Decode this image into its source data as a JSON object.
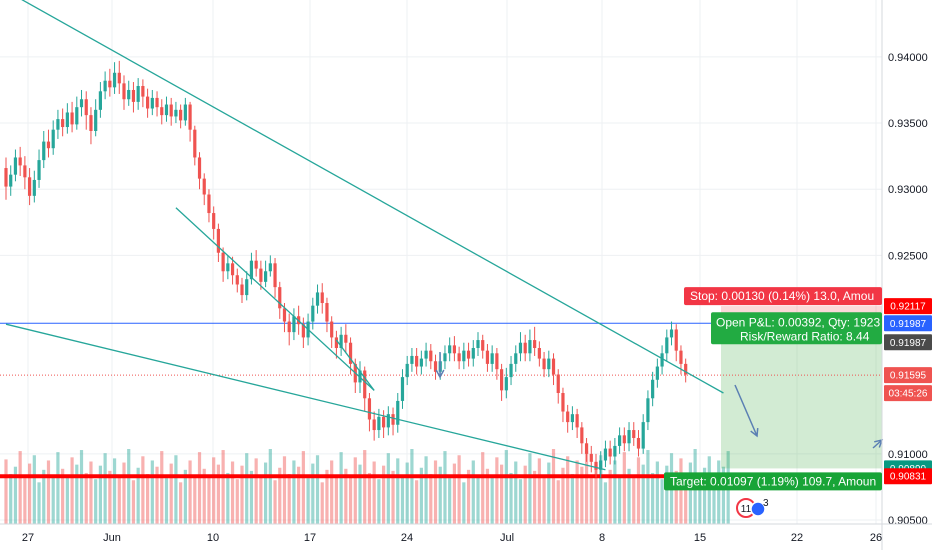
{
  "chart_data": {
    "type": "candlestick",
    "title": "",
    "y_axis": {
      "range": [
        0.9047,
        0.9443
      ],
      "ticks": [
        "0.94000",
        "0.93500",
        "0.93000",
        "0.92500",
        "0.91000",
        "0.90500"
      ]
    },
    "x_axis": {
      "ticks": [
        "27",
        "Jun",
        "10",
        "17",
        "24",
        "Jul",
        "8",
        "15",
        "22",
        "26"
      ]
    },
    "grid": true,
    "candles": [
      [
        0.9316,
        0.9302,
        0.9324,
        0.9292
      ],
      [
        0.9302,
        0.9311,
        0.9318,
        0.9295
      ],
      [
        0.9311,
        0.9324,
        0.933,
        0.9306
      ],
      [
        0.9324,
        0.9318,
        0.9332,
        0.931
      ],
      [
        0.9318,
        0.9309,
        0.9325,
        0.93
      ],
      [
        0.9309,
        0.9295,
        0.9316,
        0.9288
      ],
      [
        0.9295,
        0.9307,
        0.9314,
        0.929
      ],
      [
        0.9307,
        0.9322,
        0.933,
        0.9301
      ],
      [
        0.9322,
        0.9336,
        0.9344,
        0.9316
      ],
      [
        0.9336,
        0.9331,
        0.9345,
        0.9324
      ],
      [
        0.9331,
        0.9345,
        0.9352,
        0.9326
      ],
      [
        0.9345,
        0.9353,
        0.936,
        0.9338
      ],
      [
        0.9353,
        0.9347,
        0.9361,
        0.934
      ],
      [
        0.9347,
        0.9358,
        0.9365,
        0.9342
      ],
      [
        0.9358,
        0.9349,
        0.9366,
        0.9343
      ],
      [
        0.9349,
        0.9362,
        0.937,
        0.9345
      ],
      [
        0.9362,
        0.9368,
        0.9375,
        0.9355
      ],
      [
        0.9368,
        0.9356,
        0.9374,
        0.9345
      ],
      [
        0.9356,
        0.9344,
        0.9362,
        0.9334
      ],
      [
        0.9344,
        0.936,
        0.9368,
        0.934
      ],
      [
        0.936,
        0.9374,
        0.9381,
        0.9354
      ],
      [
        0.9374,
        0.9382,
        0.9389,
        0.9368
      ],
      [
        0.9382,
        0.9377,
        0.9391,
        0.937
      ],
      [
        0.9377,
        0.9388,
        0.9396,
        0.9372
      ],
      [
        0.9388,
        0.938,
        0.9397,
        0.9372
      ],
      [
        0.938,
        0.9368,
        0.9386,
        0.936
      ],
      [
        0.9368,
        0.9375,
        0.9382,
        0.9363
      ],
      [
        0.9375,
        0.9366,
        0.9381,
        0.9358
      ],
      [
        0.9366,
        0.9378,
        0.9384,
        0.936
      ],
      [
        0.9378,
        0.937,
        0.9383,
        0.9362
      ],
      [
        0.937,
        0.9361,
        0.9376,
        0.9354
      ],
      [
        0.9361,
        0.9369,
        0.9375,
        0.9356
      ],
      [
        0.9369,
        0.9362,
        0.9374,
        0.9355
      ],
      [
        0.9362,
        0.9356,
        0.9368,
        0.9349
      ],
      [
        0.9356,
        0.9364,
        0.937,
        0.9351
      ],
      [
        0.9364,
        0.9355,
        0.9369,
        0.9348
      ],
      [
        0.9355,
        0.936,
        0.9366,
        0.935
      ],
      [
        0.936,
        0.9352,
        0.9364,
        0.9346
      ],
      [
        0.9352,
        0.9364,
        0.9369,
        0.9348
      ],
      [
        0.9364,
        0.9345,
        0.9366,
        0.9336
      ],
      [
        0.9345,
        0.9324,
        0.9348,
        0.9318
      ],
      [
        0.9324,
        0.9308,
        0.9328,
        0.93
      ],
      [
        0.9308,
        0.9296,
        0.9312,
        0.9288
      ],
      [
        0.9296,
        0.9282,
        0.93,
        0.9275
      ],
      [
        0.9282,
        0.927,
        0.9287,
        0.9262
      ],
      [
        0.927,
        0.9252,
        0.9274,
        0.9245
      ],
      [
        0.9252,
        0.9238,
        0.9256,
        0.923
      ],
      [
        0.9238,
        0.9244,
        0.925,
        0.9232
      ],
      [
        0.9244,
        0.9235,
        0.9249,
        0.9228
      ],
      [
        0.9235,
        0.9228,
        0.924,
        0.9222
      ],
      [
        0.9228,
        0.922,
        0.9233,
        0.9214
      ],
      [
        0.922,
        0.9232,
        0.9238,
        0.9216
      ],
      [
        0.9232,
        0.9246,
        0.9252,
        0.9228
      ],
      [
        0.9246,
        0.924,
        0.9254,
        0.9234
      ],
      [
        0.924,
        0.923,
        0.9246,
        0.9224
      ],
      [
        0.923,
        0.9238,
        0.9246,
        0.9226
      ],
      [
        0.9238,
        0.9244,
        0.925,
        0.9234
      ],
      [
        0.9244,
        0.9226,
        0.9248,
        0.9218
      ],
      [
        0.9226,
        0.921,
        0.923,
        0.9202
      ],
      [
        0.921,
        0.92,
        0.9214,
        0.9192
      ],
      [
        0.92,
        0.9192,
        0.9206,
        0.9182
      ],
      [
        0.9192,
        0.9204,
        0.921,
        0.9186
      ],
      [
        0.9204,
        0.9198,
        0.9212,
        0.919
      ],
      [
        0.9198,
        0.9188,
        0.9203,
        0.918
      ],
      [
        0.9188,
        0.92,
        0.9206,
        0.9182
      ],
      [
        0.92,
        0.9212,
        0.9218,
        0.9194
      ],
      [
        0.9212,
        0.9222,
        0.9228,
        0.9206
      ],
      [
        0.9222,
        0.9214,
        0.9229,
        0.9206
      ],
      [
        0.9214,
        0.92,
        0.9218,
        0.9192
      ],
      [
        0.92,
        0.9188,
        0.9204,
        0.918
      ],
      [
        0.9188,
        0.918,
        0.9193,
        0.9172
      ],
      [
        0.918,
        0.919,
        0.9196,
        0.9174
      ],
      [
        0.919,
        0.9184,
        0.9198,
        0.9176
      ],
      [
        0.9184,
        0.9168,
        0.9188,
        0.916
      ],
      [
        0.9168,
        0.9154,
        0.9172,
        0.9146
      ],
      [
        0.9154,
        0.9163,
        0.917,
        0.9146
      ],
      [
        0.9163,
        0.9142,
        0.9166,
        0.9132
      ],
      [
        0.9142,
        0.9126,
        0.9146,
        0.9117
      ],
      [
        0.9126,
        0.9118,
        0.9132,
        0.911
      ],
      [
        0.9118,
        0.9128,
        0.9134,
        0.9112
      ],
      [
        0.9128,
        0.912,
        0.9133,
        0.9112
      ],
      [
        0.912,
        0.913,
        0.9136,
        0.9114
      ],
      [
        0.913,
        0.9122,
        0.9135,
        0.9114
      ],
      [
        0.9122,
        0.914,
        0.9146,
        0.9116
      ],
      [
        0.914,
        0.9158,
        0.9164,
        0.9134
      ],
      [
        0.9158,
        0.9168,
        0.9174,
        0.9152
      ],
      [
        0.9168,
        0.9174,
        0.918,
        0.9162
      ],
      [
        0.9174,
        0.9166,
        0.918,
        0.916
      ],
      [
        0.9166,
        0.9172,
        0.9178,
        0.916
      ],
      [
        0.9172,
        0.9178,
        0.9184,
        0.9166
      ],
      [
        0.9178,
        0.917,
        0.9183,
        0.9164
      ],
      [
        0.917,
        0.9162,
        0.9175,
        0.9156
      ],
      [
        0.9162,
        0.917,
        0.9176,
        0.9156
      ],
      [
        0.917,
        0.9176,
        0.9182,
        0.9164
      ],
      [
        0.9176,
        0.9182,
        0.9188,
        0.917
      ],
      [
        0.9182,
        0.9176,
        0.9189,
        0.917
      ],
      [
        0.9176,
        0.917,
        0.9181,
        0.9164
      ],
      [
        0.917,
        0.9178,
        0.9184,
        0.9164
      ],
      [
        0.9178,
        0.9172,
        0.9184,
        0.9166
      ],
      [
        0.9172,
        0.918,
        0.9186,
        0.9166
      ],
      [
        0.918,
        0.9186,
        0.9192,
        0.9174
      ],
      [
        0.9186,
        0.9178,
        0.919,
        0.9172
      ],
      [
        0.9178,
        0.9168,
        0.9183,
        0.9162
      ],
      [
        0.9168,
        0.9176,
        0.9182,
        0.9162
      ],
      [
        0.9176,
        0.9164,
        0.918,
        0.9156
      ],
      [
        0.9164,
        0.9148,
        0.9168,
        0.914
      ],
      [
        0.9148,
        0.9158,
        0.9165,
        0.9142
      ],
      [
        0.9158,
        0.9168,
        0.9174,
        0.9152
      ],
      [
        0.9168,
        0.9176,
        0.9182,
        0.9162
      ],
      [
        0.9176,
        0.9184,
        0.9192,
        0.917
      ],
      [
        0.9184,
        0.9176,
        0.919,
        0.917
      ],
      [
        0.9176,
        0.9186,
        0.9194,
        0.917
      ],
      [
        0.9186,
        0.918,
        0.9196,
        0.9174
      ],
      [
        0.918,
        0.9172,
        0.9185,
        0.9166
      ],
      [
        0.9172,
        0.9164,
        0.9177,
        0.9158
      ],
      [
        0.9164,
        0.9172,
        0.9178,
        0.9158
      ],
      [
        0.9172,
        0.916,
        0.9176,
        0.9152
      ],
      [
        0.916,
        0.9146,
        0.9164,
        0.9138
      ],
      [
        0.9146,
        0.9132,
        0.915,
        0.9124
      ],
      [
        0.9132,
        0.9124,
        0.9137,
        0.9116
      ],
      [
        0.9124,
        0.913,
        0.9136,
        0.9118
      ],
      [
        0.913,
        0.912,
        0.9134,
        0.9112
      ],
      [
        0.912,
        0.9108,
        0.9124,
        0.91
      ],
      [
        0.9108,
        0.91,
        0.9112,
        0.9094
      ],
      [
        0.91,
        0.9094,
        0.9106,
        0.9086
      ],
      [
        0.9094,
        0.9088,
        0.91,
        0.9082
      ],
      [
        0.9088,
        0.9095,
        0.9102,
        0.9082
      ],
      [
        0.9095,
        0.9104,
        0.911,
        0.909
      ],
      [
        0.9104,
        0.9098,
        0.911,
        0.9092
      ],
      [
        0.9098,
        0.9106,
        0.9112,
        0.9092
      ],
      [
        0.9106,
        0.9114,
        0.912,
        0.91
      ],
      [
        0.9114,
        0.9108,
        0.912,
        0.9102
      ],
      [
        0.9108,
        0.9118,
        0.9124,
        0.9102
      ],
      [
        0.9118,
        0.9112,
        0.9124,
        0.9106
      ],
      [
        0.9112,
        0.9104,
        0.9118,
        0.9098
      ],
      [
        0.9104,
        0.9124,
        0.913,
        0.91
      ],
      [
        0.9124,
        0.9142,
        0.9148,
        0.9118
      ],
      [
        0.9142,
        0.9156,
        0.9162,
        0.9136
      ],
      [
        0.9156,
        0.9166,
        0.9172,
        0.915
      ],
      [
        0.9166,
        0.9176,
        0.9182,
        0.916
      ],
      [
        0.9176,
        0.9188,
        0.9194,
        0.917
      ],
      [
        0.9188,
        0.9194,
        0.92,
        0.9182
      ],
      [
        0.9194,
        0.9178,
        0.9198,
        0.917
      ],
      [
        0.9178,
        0.9168,
        0.9182,
        0.916
      ],
      [
        0.9168,
        0.916,
        0.9172,
        0.9154
      ]
    ],
    "volume": [
      62,
      48,
      55,
      70,
      44,
      58,
      66,
      40,
      52,
      61,
      47,
      69,
      53,
      45,
      64,
      57,
      71,
      49,
      60,
      43,
      56,
      68,
      51,
      63,
      46,
      59,
      72,
      42,
      54,
      65,
      48,
      61,
      55,
      70,
      44,
      58,
      66,
      40,
      52,
      61,
      47,
      69,
      53,
      45,
      64,
      57,
      71,
      49,
      60,
      43,
      56,
      68,
      51,
      63,
      46,
      59,
      72,
      42,
      54,
      65,
      48,
      61,
      55,
      70,
      44,
      58,
      66,
      40,
      52,
      61,
      47,
      69,
      53,
      45,
      64,
      57,
      71,
      49,
      60,
      43,
      56,
      68,
      51,
      63,
      46,
      59,
      72,
      42,
      54,
      65,
      48,
      61,
      55,
      70,
      44,
      58,
      66,
      40,
      52,
      61,
      47,
      69,
      53,
      45,
      64,
      57,
      71,
      49,
      60,
      43,
      56,
      68,
      51,
      63,
      46,
      59,
      72,
      42,
      54,
      65,
      48,
      61,
      55,
      70,
      44,
      58,
      66,
      40,
      52,
      61,
      47,
      69,
      53,
      45,
      64,
      57,
      71,
      49,
      60,
      43,
      56,
      68,
      51,
      63,
      46,
      59,
      72,
      42,
      54,
      65,
      48,
      61,
      55,
      70
    ],
    "horizontal_levels": [
      {
        "value": 0.91987,
        "style": "solid",
        "color": "#2962ff"
      },
      {
        "value": 0.91595,
        "style": "dotted",
        "color": "#ef5350"
      },
      {
        "value": 0.90831,
        "style": "solid-thick",
        "color": "#ff0000"
      }
    ],
    "trend_lines": [
      {
        "from": [
          0,
          0.945
        ],
        "to": [
          152,
          0.9146
        ]
      },
      {
        "from": [
          0,
          0.9198
        ],
        "to": [
          127,
          0.9088
        ]
      },
      {
        "from": [
          36,
          0.9286
        ],
        "to": [
          78,
          0.9148
        ]
      },
      {
        "from": [
          70,
          0.9186
        ],
        "to": [
          78,
          0.9148
        ]
      }
    ],
    "position": {
      "entry": 0.91987,
      "stop": 0.92117,
      "target": 0.9089,
      "stop_label": "Stop: 0.00130 (0.14%) 13.0, Amou",
      "pnl_label": "Open P&L: 0.00392, Qty: 1923",
      "rr_label": "Risk/Reward Ratio: 8.44",
      "target_label": "Target: 0.01097 (1.19%) 109.7, Amoun"
    },
    "price_tags": [
      {
        "label": "0.92117",
        "value": 0.92117,
        "color": "#ff0000"
      },
      {
        "label": "0.91987",
        "value": 0.91987,
        "color": "#2962ff"
      },
      {
        "label": "0.91987",
        "value": 0.91972,
        "color": "#4a4a4a",
        "offset": 17
      },
      {
        "label": "0.91595",
        "value": 0.91595,
        "color": "#ef5350"
      },
      {
        "label": "03:45:26",
        "value": 0.91595,
        "color": "#ef5350",
        "offset": 18
      },
      {
        "label": "0.90890",
        "value": 0.9089,
        "color": "#089981"
      },
      {
        "label": "0.90831",
        "value": 0.90831,
        "color": "#ff0000"
      }
    ],
    "badge": {
      "label": "11",
      "sub": "3"
    }
  }
}
